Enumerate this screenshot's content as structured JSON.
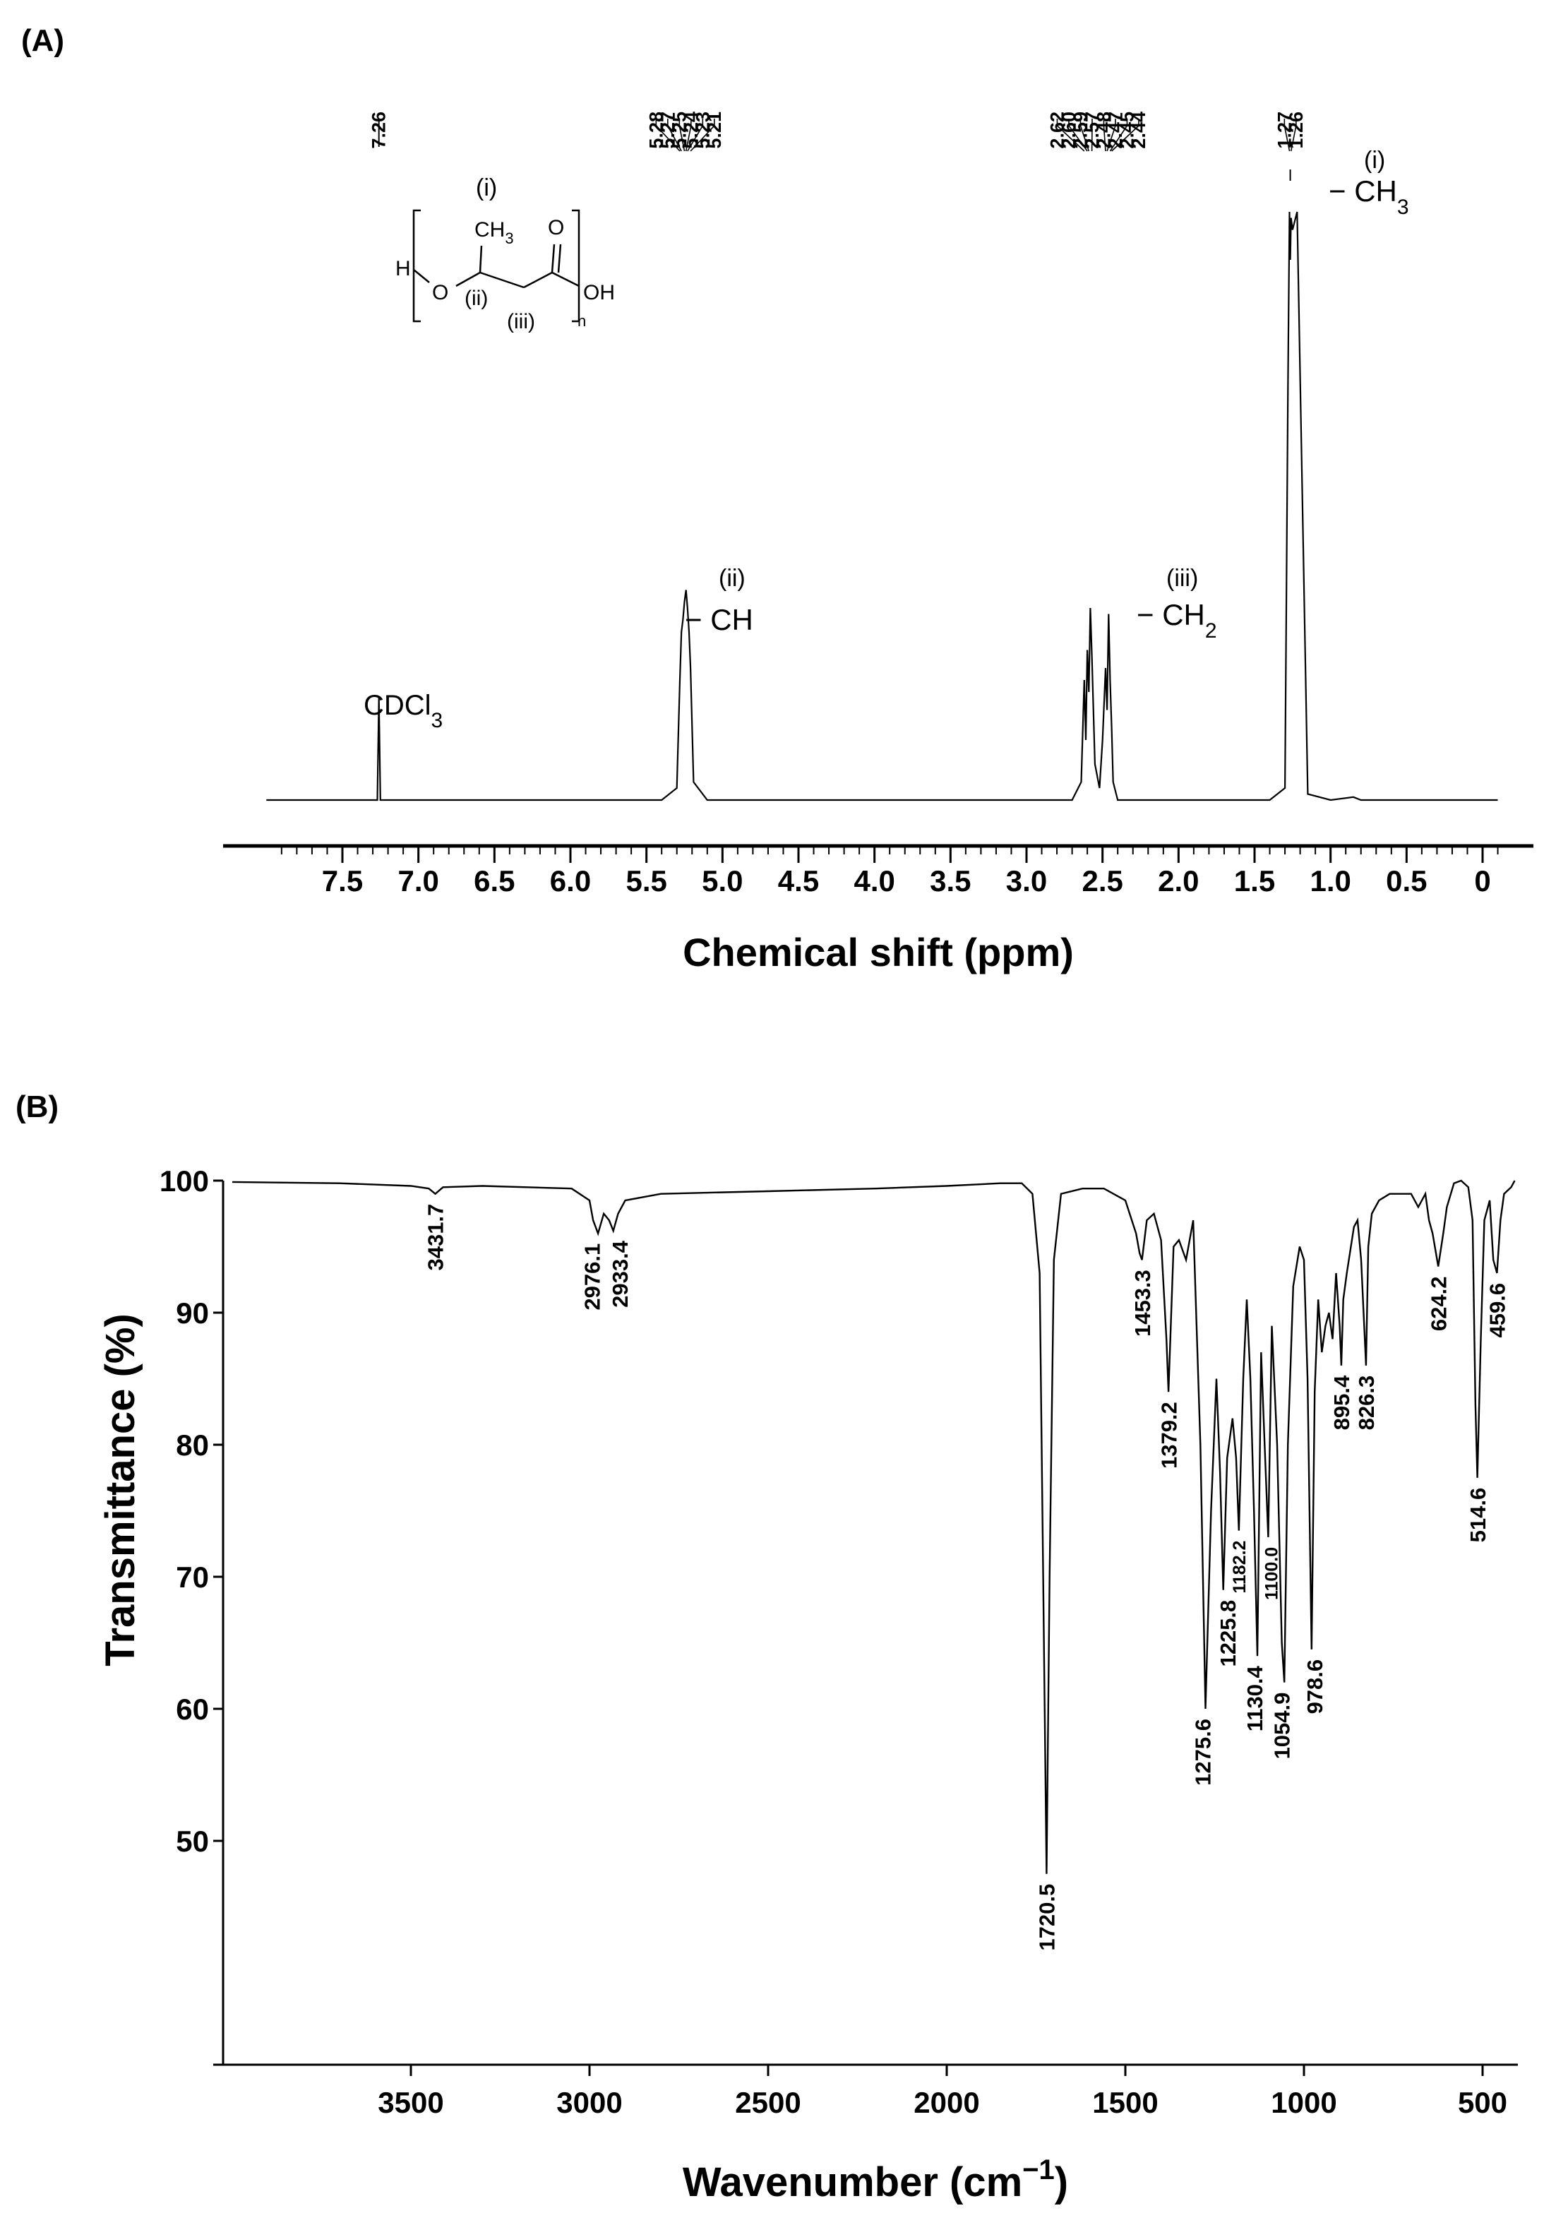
{
  "panel_a": {
    "label": "(A)",
    "xlabel": "Chemical shift (ppm)",
    "ticks": [
      {
        "v": 7.5,
        "t": "7.5"
      },
      {
        "v": 7.0,
        "t": "7.0"
      },
      {
        "v": 6.5,
        "t": "6.5"
      },
      {
        "v": 6.0,
        "t": "6.0"
      },
      {
        "v": 5.5,
        "t": "5.5"
      },
      {
        "v": 5.0,
        "t": "5.0"
      },
      {
        "v": 4.5,
        "t": "4.5"
      },
      {
        "v": 4.0,
        "t": "4.0"
      },
      {
        "v": 3.5,
        "t": "3.5"
      },
      {
        "v": 3.0,
        "t": "3.0"
      },
      {
        "v": 2.5,
        "t": "2.5"
      },
      {
        "v": 2.0,
        "t": "2.0"
      },
      {
        "v": 1.5,
        "t": "1.5"
      },
      {
        "v": 1.0,
        "t": "1.0"
      },
      {
        "v": 0.5,
        "t": "0.5"
      },
      {
        "v": 0,
        "t": "0"
      }
    ],
    "peak_label_groups": [
      {
        "labels": [
          "7.26"
        ],
        "positions": [
          7.26
        ]
      },
      {
        "labels": [
          "5.28",
          "5.27",
          "5.25",
          "5.24",
          "5.23",
          "5.21"
        ],
        "positions": [
          5.28,
          5.27,
          5.25,
          5.24,
          5.23,
          5.21
        ]
      },
      {
        "labels": [
          "2.62",
          "2.60",
          "2.59",
          "2.57",
          "2.48",
          "2.47",
          "2.45",
          "2.44"
        ],
        "positions": [
          2.62,
          2.6,
          2.59,
          2.57,
          2.48,
          2.47,
          2.45,
          2.44
        ]
      },
      {
        "labels": [
          "1.27",
          "1.26"
        ],
        "positions": [
          1.27,
          1.26
        ]
      }
    ],
    "annotations": {
      "solvent": {
        "main": "CDCl",
        "sub": "3"
      },
      "ch": {
        "roman": "(ii)",
        "text": "− CH"
      },
      "ch2": {
        "roman": "(iii)",
        "main": "− CH",
        "sub": "2"
      },
      "ch3": {
        "roman": "(i)",
        "main": "− CH",
        "sub": "3"
      }
    },
    "structure": {
      "h": "H",
      "o": "O",
      "ch3": "CH",
      "ch3_sub": "3",
      "carbonyl_o": "O",
      "oh": "OH",
      "n": "n",
      "label_i": "(i)",
      "label_ii": "(ii)",
      "label_iii": "(iii)"
    }
  },
  "panel_b": {
    "label": "(B)",
    "xlabel_main": "Wavenumber (cm",
    "xlabel_sup": "−1",
    "xlabel_close": ")",
    "ylabel": "Transmittance (%)"
  },
  "chart_data": [
    {
      "type": "line",
      "title": "",
      "xlabel": "Chemical shift (ppm)",
      "ylabel": "",
      "xlim": [
        8.0,
        -0.1
      ],
      "x_reversed": true,
      "peaks_ppm": [
        7.26,
        5.28,
        5.27,
        5.25,
        5.24,
        5.23,
        5.21,
        2.62,
        2.6,
        2.59,
        2.57,
        2.48,
        2.47,
        2.45,
        2.44,
        1.27,
        1.26
      ],
      "series": [
        {
          "x": [
            8.0,
            7.3,
            7.27,
            7.26,
            7.25,
            7.22,
            5.4,
            5.3,
            5.28,
            5.27,
            5.26,
            5.25,
            5.24,
            5.23,
            5.22,
            5.21,
            5.19,
            5.1,
            2.7,
            2.64,
            2.62,
            2.61,
            2.6,
            2.59,
            2.58,
            2.57,
            2.55,
            2.52,
            2.5,
            2.48,
            2.47,
            2.46,
            2.45,
            2.44,
            2.43,
            2.4,
            1.4,
            1.3,
            1.28,
            1.27,
            1.265,
            1.26,
            1.25,
            1.22,
            1.15,
            1.0,
            0.85,
            0.8,
            -0.1
          ],
          "y": [
            0,
            0,
            0,
            17,
            0,
            0,
            0,
            2,
            20,
            28,
            30,
            33,
            35,
            32,
            28,
            22,
            3,
            0,
            0,
            3,
            20,
            10,
            25,
            18,
            32,
            24,
            6,
            2,
            10,
            22,
            15,
            31,
            20,
            12,
            3,
            0,
            0,
            2,
            70,
            98,
            90,
            97,
            95,
            98,
            1,
            0,
            0.5,
            0,
            0
          ]
        }
      ]
    },
    {
      "type": "line",
      "title": "",
      "xlabel": "Wavenumber (cm−1)",
      "ylabel": "Transmittance (%)",
      "xlim": [
        4000,
        410
      ],
      "x_reversed": true,
      "ylim": [
        30,
        100
      ],
      "x_ticks": [
        3500,
        3000,
        2500,
        2000,
        1500,
        1000,
        500
      ],
      "y_ticks": [
        50,
        60,
        70,
        80,
        90,
        100
      ],
      "series": [
        {
          "x": [
            4000,
            3700,
            3500,
            3450,
            3431.7,
            3410,
            3300,
            3050,
            3000,
            2990,
            2976.1,
            2960,
            2945,
            2933.4,
            2920,
            2900,
            2800,
            2500,
            2200,
            2000,
            1850,
            1790,
            1760,
            1740,
            1730,
            1720.5,
            1712,
            1700,
            1680,
            1620,
            1560,
            1500,
            1470,
            1460,
            1453.3,
            1440,
            1420,
            1400,
            1385,
            1379.2,
            1365,
            1350,
            1330,
            1310,
            1290,
            1275.6,
            1260,
            1245,
            1235,
            1225.8,
            1215,
            1200,
            1190,
            1182.2,
            1170,
            1160,
            1150,
            1140,
            1130.4,
            1120,
            1110,
            1100.0,
            1090,
            1075,
            1062,
            1054.9,
            1045,
            1030,
            1012,
            1000,
            990,
            978.6,
            970,
            960,
            950,
            940,
            930,
            920,
            910,
            900,
            895.4,
            890,
            880,
            860,
            850,
            840,
            826.3,
            820,
            810,
            790,
            760,
            700,
            680,
            660,
            650,
            640,
            624.2,
            610,
            600,
            580,
            560,
            540,
            528,
            520,
            514.6,
            505,
            495,
            480,
            470,
            459.6,
            450,
            440,
            420,
            410
          ],
          "y": [
            99.9,
            99.8,
            99.6,
            99.4,
            99.0,
            99.5,
            99.6,
            99.4,
            98.5,
            97.0,
            96.0,
            97.5,
            97.0,
            96.2,
            97.5,
            98.5,
            99.0,
            99.2,
            99.4,
            99.6,
            99.8,
            99.8,
            99.0,
            93.0,
            70.0,
            47.5,
            70.0,
            94.0,
            99.0,
            99.4,
            99.4,
            98.5,
            96.0,
            94.5,
            94.0,
            97.0,
            97.5,
            95.5,
            88.0,
            84.0,
            95.0,
            95.5,
            94.0,
            97.0,
            80.0,
            60.0,
            75.0,
            85.0,
            78.0,
            69.0,
            79.0,
            82.0,
            79.0,
            73.5,
            85.0,
            91.0,
            85.0,
            75.0,
            64.0,
            87.0,
            80.0,
            73.0,
            89.0,
            80.0,
            65.0,
            62.0,
            80.0,
            92.0,
            95.0,
            94.0,
            85.0,
            64.5,
            84.0,
            91.0,
            87.0,
            89.0,
            90.0,
            88.0,
            93.0,
            89.0,
            86.0,
            91.0,
            93.0,
            96.5,
            97.0,
            94.0,
            86.0,
            95.0,
            97.5,
            98.5,
            99.0,
            99.0,
            98.0,
            99.0,
            97.0,
            96.0,
            93.5,
            96.0,
            98.0,
            99.8,
            100.0,
            99.5,
            97.0,
            83.0,
            77.5,
            88.0,
            97.0,
            98.5,
            94.0,
            93.0,
            97.0,
            99.0,
            99.5,
            100.0
          ],
          "peak_labels": [
            "3431.7",
            "2976.1",
            "2933.4",
            "1720.5",
            "1453.3",
            "1379.2",
            "1275.6",
            "1225.8",
            "1182.2",
            "1130.4",
            "1100.0",
            "1054.9",
            "978.6",
            "895.4",
            "826.3",
            "624.2",
            "514.6",
            "459.6"
          ]
        }
      ]
    }
  ]
}
